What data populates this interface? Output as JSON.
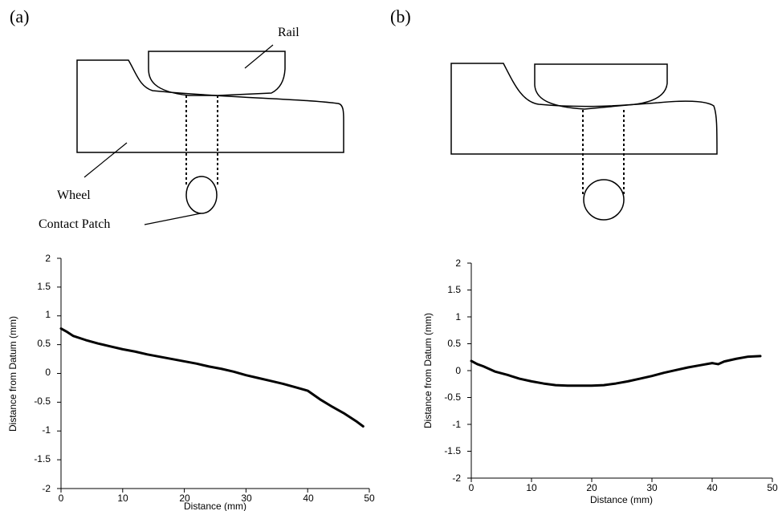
{
  "panels": {
    "a": {
      "label": "(a)"
    },
    "b": {
      "label": "(b)"
    }
  },
  "diagram_a": {
    "rail_label": "Rail",
    "wheel_label": "Wheel",
    "contact_patch_label": "Contact Patch"
  },
  "chart_data": [
    {
      "type": "line",
      "panel": "(a)",
      "xlabel": "Distance (mm)",
      "ylabel": "Distance from Datum (mm)",
      "xlim": [
        0,
        50
      ],
      "ylim": [
        -2,
        2
      ],
      "xticks": [
        0,
        10,
        20,
        30,
        40,
        50
      ],
      "yticks": [
        2,
        1.5,
        1,
        0.5,
        0,
        -0.5,
        -1,
        -1.5,
        -2
      ],
      "x_tick_labels": [
        "0",
        "10",
        "20",
        "30",
        "40",
        "50"
      ],
      "y_tick_labels": [
        "2",
        "1.5",
        "1",
        "0.5",
        "0",
        "-0.5",
        "-1",
        "-1.5",
        "-2"
      ],
      "grid": false,
      "series": [
        {
          "x": [
            0,
            1,
            2,
            4,
            6,
            8,
            10,
            12,
            14,
            16,
            18,
            20,
            22,
            24,
            26,
            28,
            30,
            32,
            34,
            36,
            38,
            40,
            42,
            44,
            46,
            48,
            49
          ],
          "y": [
            0.78,
            0.72,
            0.65,
            0.58,
            0.52,
            0.47,
            0.42,
            0.38,
            0.33,
            0.29,
            0.25,
            0.21,
            0.17,
            0.12,
            0.08,
            0.03,
            -0.03,
            -0.08,
            -0.13,
            -0.18,
            -0.24,
            -0.3,
            -0.45,
            -0.58,
            -0.7,
            -0.84,
            -0.92
          ]
        }
      ]
    },
    {
      "type": "line",
      "panel": "(b)",
      "xlabel": "Distance (mm)",
      "ylabel": "Distance from Datum (mm)",
      "xlim": [
        0,
        50
      ],
      "ylim": [
        -2,
        2
      ],
      "xticks": [
        0,
        10,
        20,
        30,
        40,
        50
      ],
      "yticks": [
        2,
        1.5,
        1,
        0.5,
        0,
        -0.5,
        -1,
        -1.5,
        -2
      ],
      "x_tick_labels": [
        "0",
        "10",
        "20",
        "30",
        "40",
        "50"
      ],
      "y_tick_labels": [
        "2",
        "1.5",
        "1",
        "0.5",
        "0",
        "-0.5",
        "-1",
        "-1.5",
        "-2"
      ],
      "grid": false,
      "series": [
        {
          "x": [
            0,
            1,
            2,
            4,
            6,
            8,
            10,
            12,
            14,
            16,
            18,
            20,
            22,
            24,
            26,
            28,
            30,
            32,
            34,
            36,
            38,
            40,
            41,
            42,
            44,
            46,
            48
          ],
          "y": [
            0.18,
            0.12,
            0.08,
            -0.02,
            -0.08,
            -0.15,
            -0.2,
            -0.24,
            -0.27,
            -0.28,
            -0.28,
            -0.28,
            -0.27,
            -0.24,
            -0.2,
            -0.15,
            -0.1,
            -0.04,
            0.01,
            0.06,
            0.1,
            0.14,
            0.12,
            0.17,
            0.22,
            0.26,
            0.27
          ]
        }
      ]
    }
  ]
}
